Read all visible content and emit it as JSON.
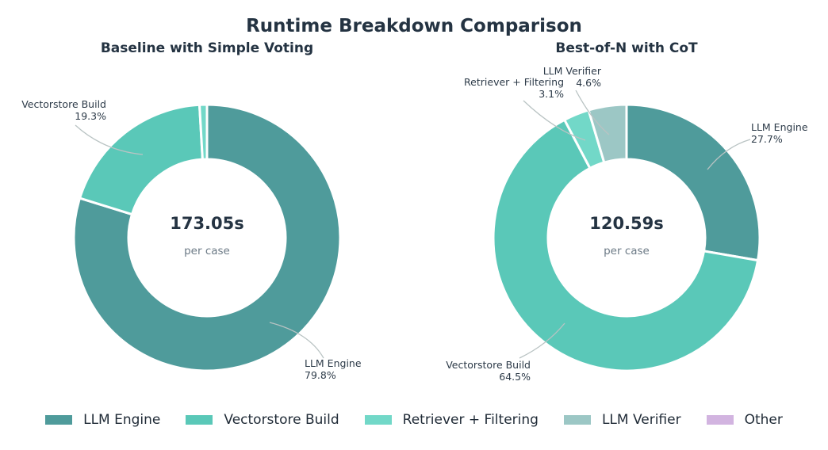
{
  "chart_data": [
    {
      "type": "pie",
      "donut": true,
      "title": "Baseline with Simple Voting",
      "center_value": "173.05s",
      "center_label": "per case",
      "slices": [
        {
          "name": "LLM Engine",
          "value": 79.8,
          "label": "79.8%",
          "color": "#4f9b9b"
        },
        {
          "name": "Vectorstore Build",
          "value": 19.3,
          "label": "19.3%",
          "color": "#5ac8b8"
        },
        {
          "name": "Retriever + Filtering",
          "value": 0.9,
          "label": "",
          "color": "#72d8c8"
        }
      ]
    },
    {
      "type": "pie",
      "donut": true,
      "title": "Best-of-N with CoT",
      "center_value": "120.59s",
      "center_label": "per case",
      "slices": [
        {
          "name": "LLM Engine",
          "value": 27.7,
          "label": "27.7%",
          "color": "#4f9b9b"
        },
        {
          "name": "Vectorstore Build",
          "value": 64.5,
          "label": "64.5%",
          "color": "#5ac8b8"
        },
        {
          "name": "Retriever + Filtering",
          "value": 3.1,
          "label": "3.1%",
          "color": "#72d8c8"
        },
        {
          "name": "LLM Verifier",
          "value": 4.6,
          "label": "4.6%",
          "color": "#9cc7c5"
        }
      ]
    }
  ],
  "title": "Runtime Breakdown Comparison",
  "legend": {
    "placement": "bottom",
    "items": [
      {
        "name": "LLM Engine",
        "color": "#4f9b9b"
      },
      {
        "name": "Vectorstore Build",
        "color": "#5ac8b8"
      },
      {
        "name": "Retriever + Filtering",
        "color": "#72d8c8"
      },
      {
        "name": "LLM Verifier",
        "color": "#9cc7c5"
      },
      {
        "name": "Other",
        "color": "#d2b4e0"
      }
    ]
  }
}
